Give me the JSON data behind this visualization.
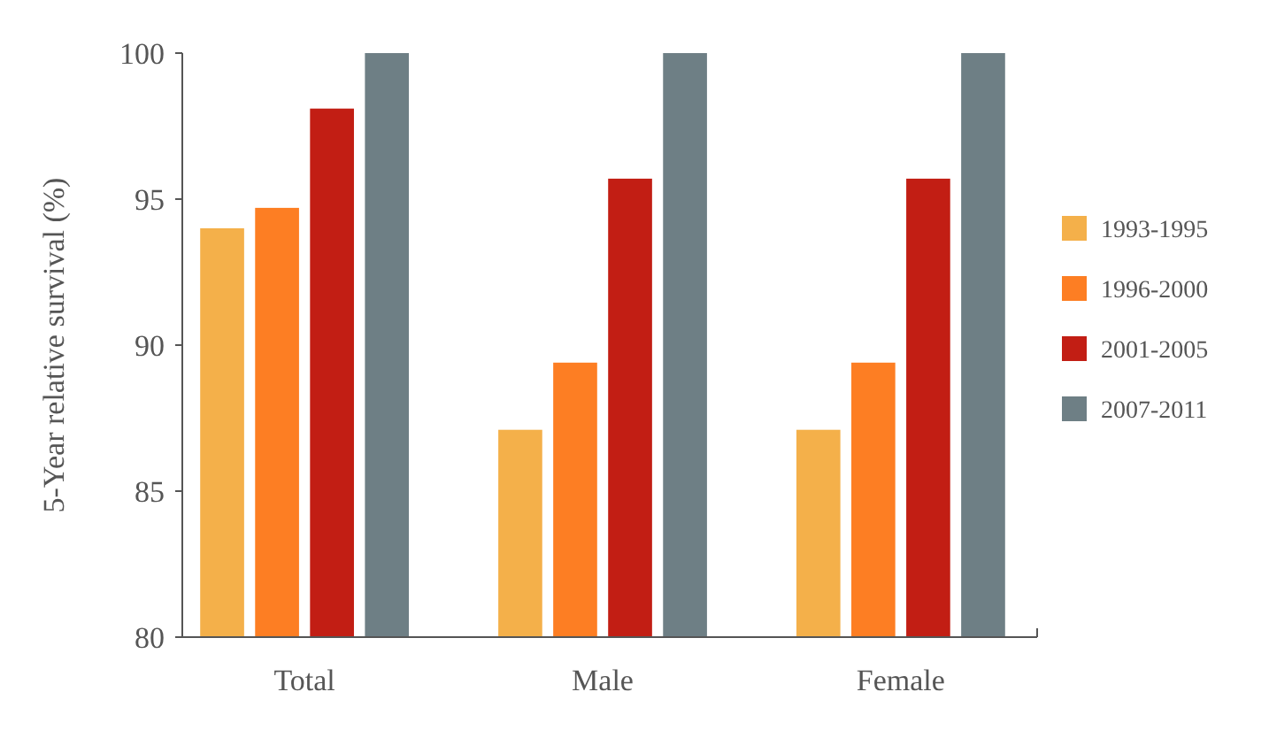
{
  "chart_data": {
    "type": "bar",
    "ylabel": "5-Year relative survival (%)",
    "categories": [
      "Total",
      "Male",
      "Female"
    ],
    "series": [
      {
        "name": "1993-1995",
        "color": "#f4b04a",
        "values": [
          94.0,
          87.1,
          87.1
        ]
      },
      {
        "name": "1996-2000",
        "color": "#fd7e23",
        "values": [
          94.7,
          89.4,
          89.4
        ]
      },
      {
        "name": "2001-2005",
        "color": "#c21e14",
        "values": [
          98.1,
          95.7,
          95.7
        ]
      },
      {
        "name": "2007-2011",
        "color": "#6e7f85",
        "values": [
          100,
          100,
          100
        ]
      }
    ],
    "ylim": [
      80,
      100
    ],
    "yticks": [
      80,
      85,
      90,
      95,
      100
    ],
    "legend": "right"
  }
}
